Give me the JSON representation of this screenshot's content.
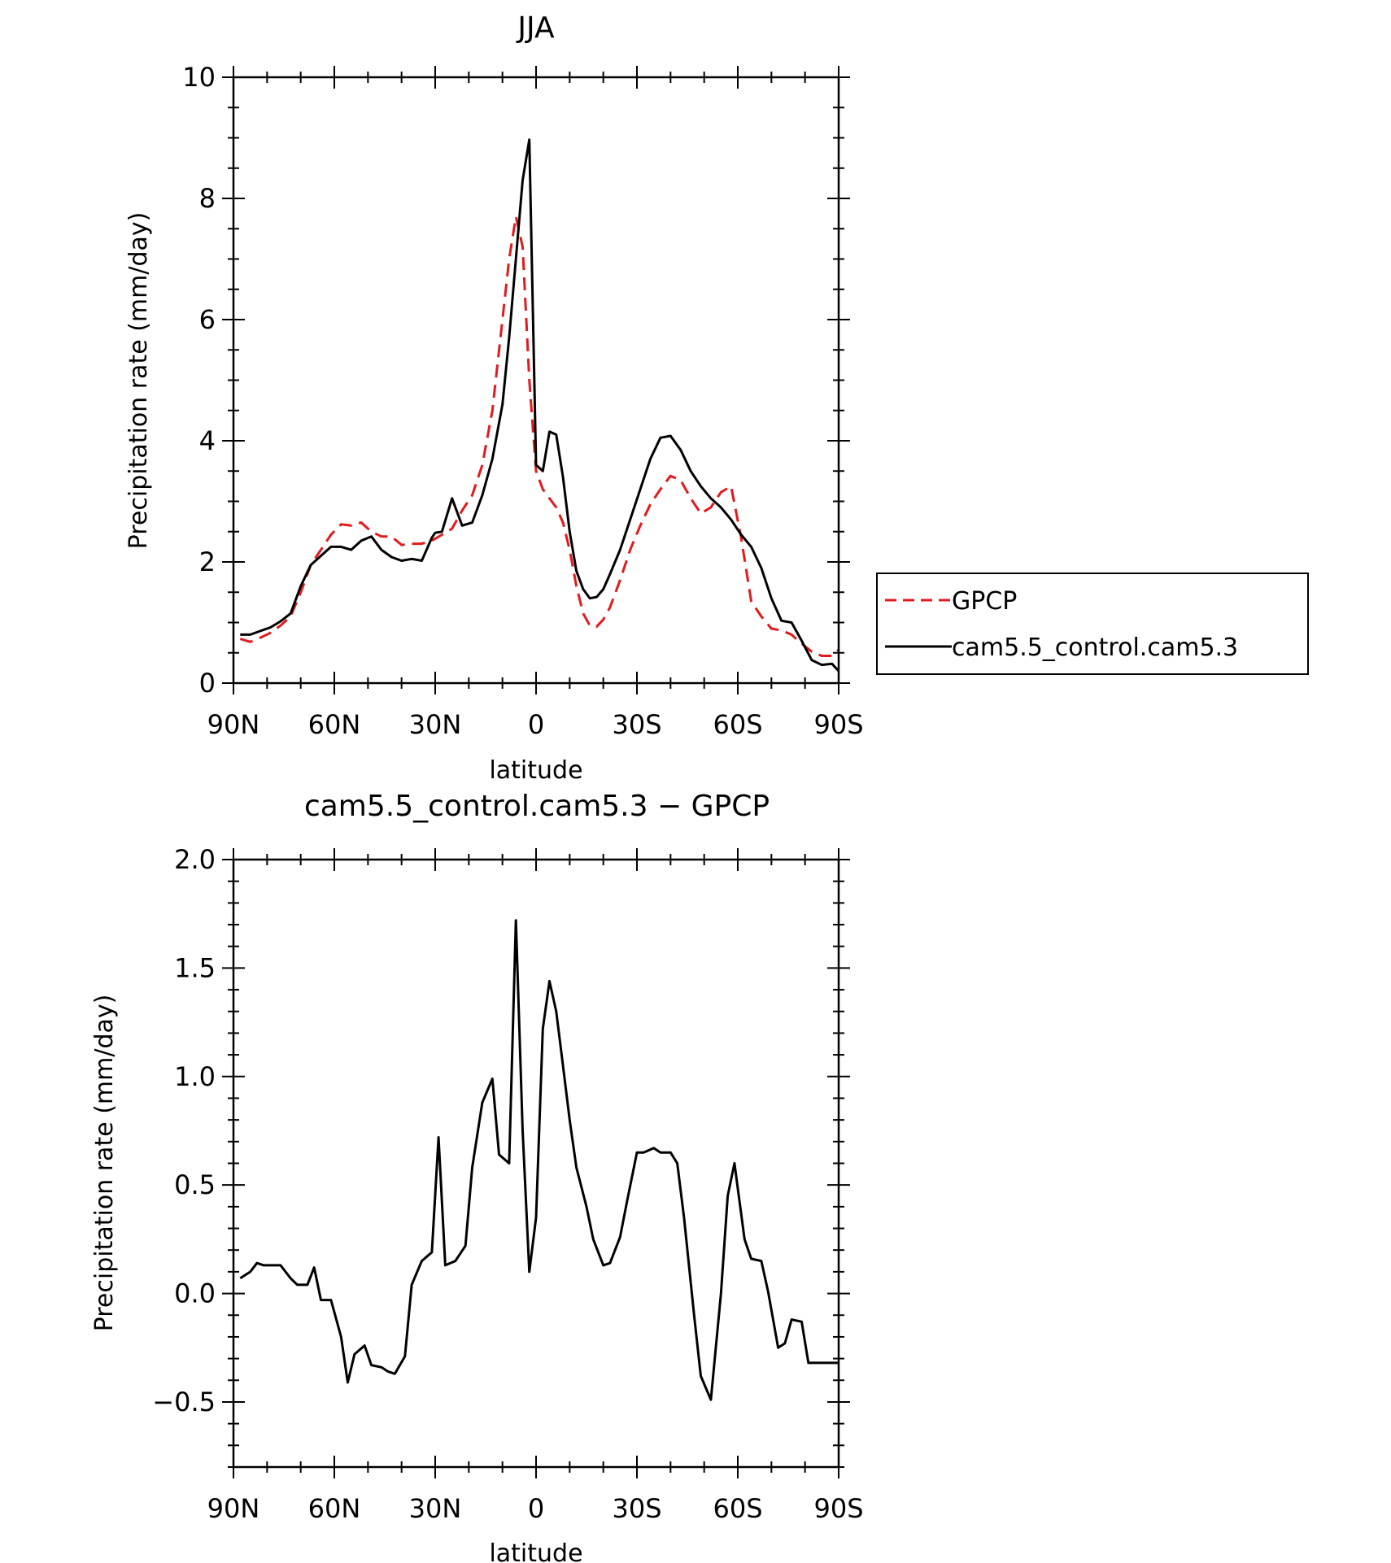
{
  "chart_data": [
    {
      "type": "line",
      "title": "JJA",
      "xlabel": "latitude",
      "ylabel": "Precipitation rate (mm/day)",
      "xlim": [
        90,
        -90
      ],
      "ylim": [
        0,
        10
      ],
      "x_tick_values": [
        90,
        60,
        30,
        0,
        -30,
        -60,
        -90
      ],
      "x_tick_labels": [
        "90N",
        "60N",
        "30N",
        "0",
        "30S",
        "60S",
        "90S"
      ],
      "y_tick_values": [
        0,
        2,
        4,
        6,
        8,
        10
      ],
      "y_tick_labels": [
        "0",
        "2",
        "4",
        "6",
        "8",
        "10"
      ],
      "grid": false,
      "legend_position": "right",
      "series": [
        {
          "name": "GPCP",
          "color": "#e31a1c",
          "dash": "dashed",
          "x": [
            88,
            85,
            82,
            79,
            76,
            73,
            70,
            67,
            64,
            61,
            58,
            55,
            52,
            49,
            46,
            43,
            40,
            37,
            34,
            31,
            28,
            25,
            22,
            19,
            16,
            13,
            10,
            8,
            6,
            4,
            2,
            0,
            -2,
            -4,
            -6,
            -8,
            -10,
            -12,
            -14,
            -16,
            -18,
            -20,
            -22,
            -25,
            -28,
            -31,
            -34,
            -37,
            -40,
            -43,
            -46,
            -49,
            -52,
            -55,
            -58,
            -61,
            -64,
            -67,
            -70,
            -73,
            -76,
            -79,
            -82,
            -85,
            -88,
            -90
          ],
          "y": [
            0.73,
            0.68,
            0.75,
            0.83,
            0.95,
            1.1,
            1.5,
            1.95,
            2.2,
            2.45,
            2.62,
            2.6,
            2.65,
            2.5,
            2.42,
            2.42,
            2.28,
            2.3,
            2.3,
            2.35,
            2.45,
            2.55,
            2.85,
            3.1,
            3.6,
            4.5,
            6.0,
            7.0,
            7.7,
            7.2,
            5.0,
            3.5,
            3.2,
            3.05,
            2.9,
            2.65,
            2.2,
            1.6,
            1.15,
            0.95,
            0.93,
            1.05,
            1.25,
            1.7,
            2.2,
            2.6,
            2.95,
            3.2,
            3.42,
            3.35,
            3.05,
            2.8,
            2.9,
            3.15,
            3.25,
            2.4,
            1.35,
            1.1,
            0.9,
            0.87,
            0.8,
            0.65,
            0.52,
            0.45,
            0.45,
            0.55
          ]
        },
        {
          "name": "cam5.5_control.cam5.3",
          "color": "#000000",
          "dash": "solid",
          "x": [
            88,
            85,
            82,
            79,
            76,
            73,
            70,
            67,
            64,
            61,
            58,
            55,
            52,
            49,
            46,
            43,
            40,
            37,
            34,
            31,
            30,
            28,
            25,
            22,
            19,
            16,
            13,
            10,
            8,
            6,
            4,
            2,
            0,
            -2,
            -4,
            -6,
            -8,
            -10,
            -12,
            -14,
            -16,
            -18,
            -20,
            -22,
            -25,
            -28,
            -31,
            -34,
            -37,
            -40,
            -43,
            -46,
            -49,
            -52,
            -55,
            -58,
            -61,
            -64,
            -67,
            -70,
            -73,
            -76,
            -79,
            -82,
            -85,
            -88,
            -90
          ],
          "y": [
            0.8,
            0.8,
            0.86,
            0.92,
            1.02,
            1.15,
            1.6,
            1.95,
            2.1,
            2.25,
            2.25,
            2.2,
            2.35,
            2.42,
            2.2,
            2.08,
            2.02,
            2.05,
            2.02,
            2.4,
            2.48,
            2.5,
            3.05,
            2.6,
            2.65,
            3.1,
            3.7,
            4.6,
            5.7,
            7.0,
            8.3,
            8.97,
            3.6,
            3.5,
            4.15,
            4.1,
            3.4,
            2.5,
            1.85,
            1.55,
            1.4,
            1.42,
            1.55,
            1.8,
            2.2,
            2.7,
            3.2,
            3.7,
            4.05,
            4.08,
            3.85,
            3.5,
            3.25,
            3.05,
            2.9,
            2.7,
            2.45,
            2.25,
            1.9,
            1.4,
            1.03,
            1.0,
            0.7,
            0.38,
            0.3,
            0.32,
            0.2
          ]
        }
      ]
    },
    {
      "type": "line",
      "title": "cam5.5_control.cam5.3 − GPCP",
      "xlabel": "latitude",
      "ylabel": "Precipitation rate (mm/day)",
      "xlim": [
        90,
        -90
      ],
      "ylim": [
        -0.8,
        2.0
      ],
      "x_tick_values": [
        90,
        60,
        30,
        0,
        -30,
        -60,
        -90
      ],
      "x_tick_labels": [
        "90N",
        "60N",
        "30N",
        "0",
        "30S",
        "60S",
        "90S"
      ],
      "y_tick_values": [
        -0.5,
        0.0,
        0.5,
        1.0,
        1.5,
        2.0
      ],
      "y_tick_labels": [
        "−0.5",
        "0.0",
        "0.5",
        "1.0",
        "1.5",
        "2.0"
      ],
      "grid": false,
      "series": [
        {
          "color": "#000000",
          "dash": "solid",
          "x": [
            88,
            85,
            83,
            81,
            79,
            76,
            73,
            71,
            68,
            66,
            64,
            61,
            58,
            56,
            54,
            51,
            49,
            46,
            44,
            42,
            39,
            37,
            34,
            31,
            29,
            27,
            24,
            21,
            19,
            16,
            13,
            11,
            8,
            6,
            4,
            2,
            0,
            -2,
            -4,
            -6,
            -8,
            -10,
            -12,
            -15,
            -17,
            -20,
            -22,
            -25,
            -27,
            -30,
            -32,
            -35,
            -37,
            -40,
            -42,
            -44,
            -47,
            -49,
            -52,
            -55,
            -57,
            -59,
            -62,
            -64,
            -67,
            -69,
            -72,
            -74,
            -76,
            -79,
            -81,
            -84,
            -86,
            -88,
            -90
          ],
          "y": [
            0.07,
            0.1,
            0.14,
            0.13,
            0.13,
            0.13,
            0.07,
            0.04,
            0.04,
            0.12,
            -0.03,
            -0.03,
            -0.2,
            -0.41,
            -0.28,
            -0.24,
            -0.33,
            -0.34,
            -0.36,
            -0.37,
            -0.29,
            0.04,
            0.15,
            0.19,
            0.72,
            0.13,
            0.15,
            0.22,
            0.58,
            0.88,
            0.99,
            0.64,
            0.6,
            1.72,
            0.75,
            0.1,
            0.35,
            1.22,
            1.44,
            1.3,
            1.05,
            0.8,
            0.58,
            0.4,
            0.25,
            0.13,
            0.14,
            0.26,
            0.42,
            0.65,
            0.65,
            0.67,
            0.65,
            0.65,
            0.6,
            0.35,
            -0.1,
            -0.38,
            -0.49,
            0.0,
            0.45,
            0.6,
            0.25,
            0.16,
            0.15,
            0.01,
            -0.25,
            -0.23,
            -0.12,
            -0.13,
            -0.32,
            -0.32,
            -0.32,
            -0.32,
            -0.32
          ]
        }
      ]
    }
  ]
}
